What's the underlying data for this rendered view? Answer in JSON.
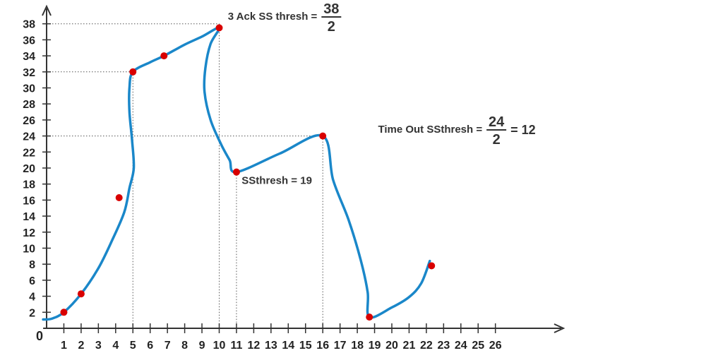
{
  "chart_data": {
    "type": "line",
    "title": "",
    "xlabel": "",
    "ylabel": "",
    "origin_label": "0",
    "xlim": [
      0,
      26
    ],
    "ylim": [
      0,
      38
    ],
    "x_ticks": [
      1,
      2,
      3,
      4,
      5,
      6,
      7,
      8,
      9,
      10,
      11,
      12,
      13,
      14,
      15,
      16,
      17,
      18,
      19,
      20,
      21,
      22,
      23,
      24,
      25,
      26
    ],
    "y_ticks": [
      2,
      4,
      6,
      8,
      10,
      12,
      14,
      16,
      18,
      20,
      22,
      24,
      26,
      28,
      30,
      32,
      34,
      36,
      38
    ],
    "grid": false,
    "colors": {
      "curve": "#1a87c9",
      "points": "#d90000",
      "axis": "#333333",
      "guides": "#555555"
    },
    "curve": [
      [
        -0.2,
        1.1
      ],
      [
        0.3,
        1.2
      ],
      [
        1,
        2
      ],
      [
        2,
        4.3
      ],
      [
        3,
        7.5
      ],
      [
        3.8,
        11.0
      ],
      [
        4.5,
        14.5
      ],
      [
        4.8,
        17.5
      ],
      [
        5.05,
        20.0
      ],
      [
        4.95,
        23.5
      ],
      [
        4.8,
        27.0
      ],
      [
        4.8,
        30.0
      ],
      [
        5,
        32
      ],
      [
        6,
        33.2
      ],
      [
        6.8,
        34
      ],
      [
        8,
        35.4
      ],
      [
        9,
        36.4
      ],
      [
        10,
        37.5
      ],
      [
        9.5,
        35.5
      ],
      [
        9.2,
        32.5
      ],
      [
        9.15,
        29.5
      ],
      [
        9.5,
        26.0
      ],
      [
        10.1,
        23.0
      ],
      [
        10.6,
        21.0
      ],
      [
        11,
        19.5
      ],
      [
        13.5,
        21.8
      ],
      [
        16,
        24
      ],
      [
        16.6,
        18.5
      ],
      [
        17.5,
        13.5
      ],
      [
        18.2,
        8.5
      ],
      [
        18.6,
        4.5
      ],
      [
        18.7,
        1.4
      ],
      [
        20,
        2.6
      ],
      [
        21,
        3.9
      ],
      [
        21.7,
        5.6
      ],
      [
        22.2,
        8.4
      ]
    ],
    "points": [
      [
        1,
        2
      ],
      [
        2,
        4.3
      ],
      [
        4.2,
        16.3
      ],
      [
        5,
        32
      ],
      [
        6.8,
        34
      ],
      [
        10,
        37.5
      ],
      [
        11,
        19.5
      ],
      [
        16,
        24
      ],
      [
        18.7,
        1.4
      ],
      [
        22.3,
        7.8
      ]
    ],
    "guides": [
      {
        "from": [
          0,
          38
        ],
        "to": [
          10,
          38
        ]
      },
      {
        "from": [
          10,
          38
        ],
        "to": [
          10,
          0
        ]
      },
      {
        "from": [
          0,
          32
        ],
        "to": [
          5,
          32
        ]
      },
      {
        "from": [
          5,
          32
        ],
        "to": [
          5,
          0
        ]
      },
      {
        "from": [
          0,
          24
        ],
        "to": [
          16,
          24
        ]
      },
      {
        "from": [
          16,
          24
        ],
        "to": [
          16,
          0
        ]
      },
      {
        "from": [
          11,
          19.5
        ],
        "to": [
          11,
          0
        ]
      }
    ],
    "annotations": [
      {
        "prefix": "3 Ack SS thresh =",
        "numerator": "38",
        "denominator": "2",
        "suffix": "",
        "at": [
          10.5,
          38.5
        ]
      },
      {
        "prefix": "Time Out SSthresh =",
        "numerator": "24",
        "denominator": "2",
        "suffix": "= 12",
        "at": [
          19.2,
          24.4
        ]
      },
      {
        "prefix": "SSthresh = 19",
        "numerator": "",
        "denominator": "",
        "suffix": "",
        "at": [
          11.3,
          18
        ]
      }
    ]
  }
}
